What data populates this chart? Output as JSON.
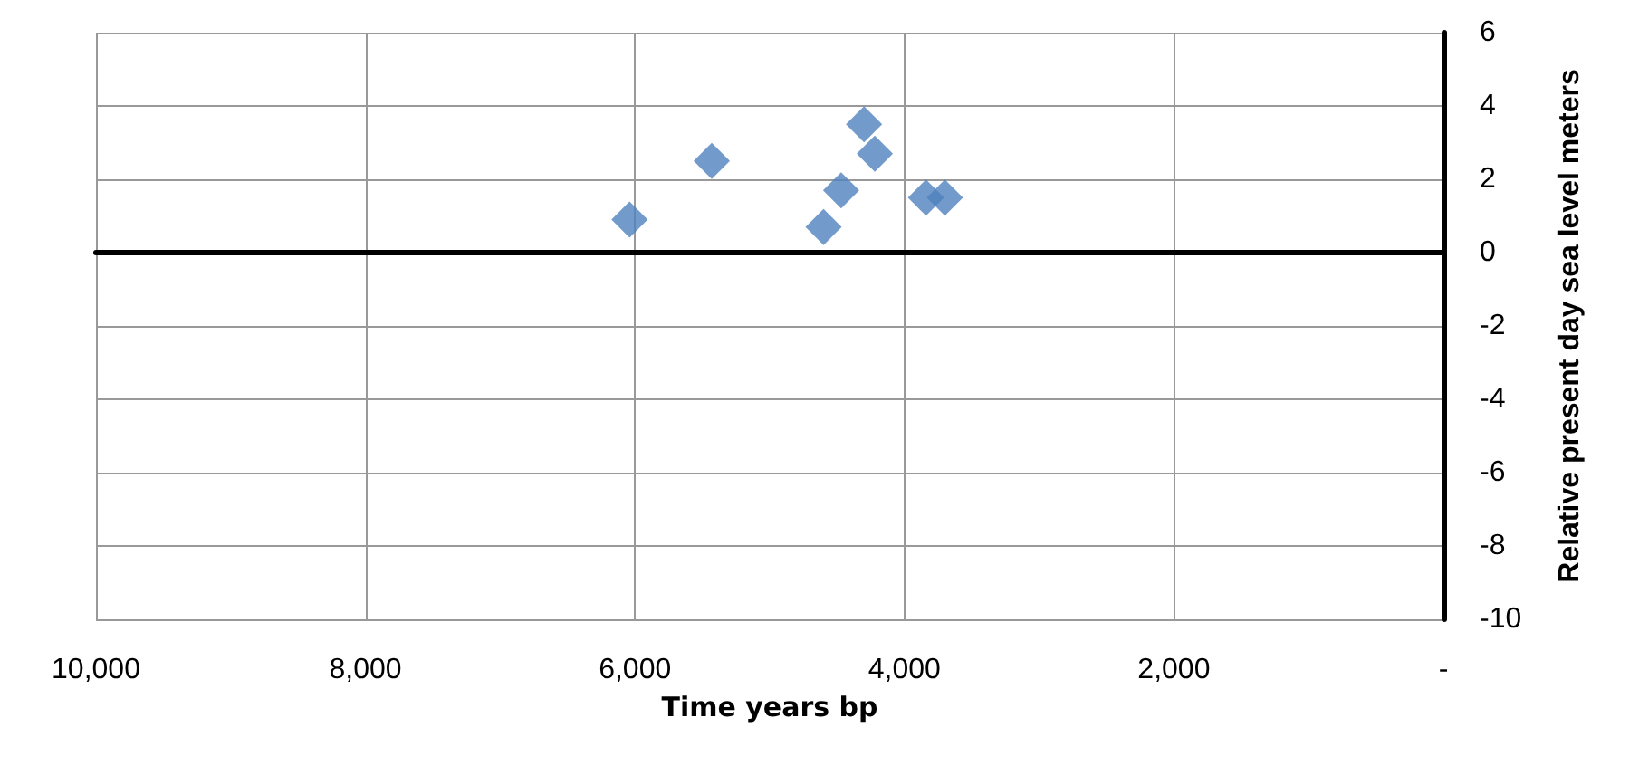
{
  "chart_data": {
    "type": "scatter",
    "xlabel": "Time years bp",
    "ylabel": "Relative present day sea level meters",
    "x": [
      6040,
      5430,
      4300,
      4220,
      4470,
      4600,
      3840,
      3700
    ],
    "series": [
      {
        "color": "#4f81bd",
        "values": [
          0.9,
          2.5,
          3.5,
          2.7,
          1.7,
          0.7,
          1.5,
          1.5
        ]
      }
    ],
    "xlim": [
      10000,
      0
    ],
    "xticks": [
      {
        "value": 10000,
        "label": "10,000"
      },
      {
        "value": 8000,
        "label": "8,000"
      },
      {
        "value": 6000,
        "label": "6,000"
      },
      {
        "value": 4000,
        "label": "4,000"
      },
      {
        "value": 2000,
        "label": "2,000"
      },
      {
        "value": 0,
        "label": "-"
      }
    ],
    "ylim": [
      -10,
      6
    ],
    "yticks": [
      -10,
      -8,
      -6,
      -4,
      -2,
      0,
      2,
      4,
      6
    ],
    "grid": true,
    "marker": "diamond"
  }
}
